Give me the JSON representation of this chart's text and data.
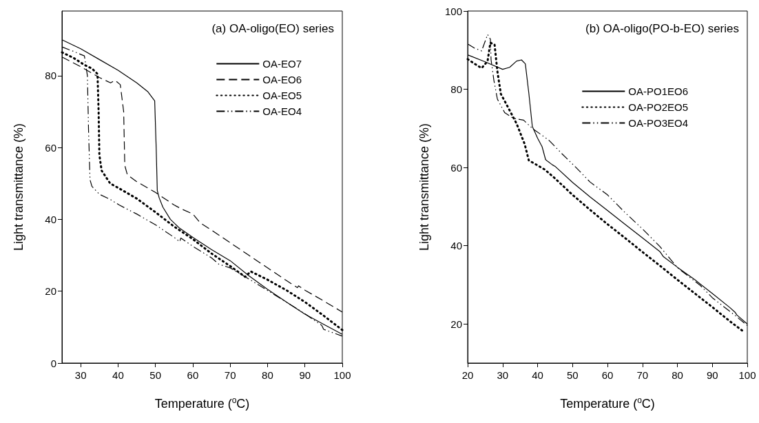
{
  "chart_data": [
    {
      "type": "line",
      "title": "(a) OA-oligo(EO) series",
      "xlabel": "Temperature ($^{o}$C)",
      "ylabel": "Light transmittance (%)",
      "xlim": [
        25,
        100
      ],
      "xticks": [
        30,
        40,
        50,
        60,
        70,
        80,
        90,
        100
      ],
      "ylim": [
        0,
        98
      ],
      "yticks": [
        0,
        20,
        40,
        60,
        80
      ],
      "grid": false,
      "legend": "top right",
      "marker": "none",
      "series": [
        {
          "name": "OA-EO7",
          "color": "#000000",
          "line_style": "solid",
          "x": [
            25,
            30,
            35,
            40,
            45,
            48,
            49.8,
            50.2,
            50.5,
            51,
            52,
            54,
            56.3,
            60,
            65,
            70,
            75,
            80,
            85,
            90,
            95,
            100
          ],
          "values": [
            90,
            87.5,
            84.5,
            81.5,
            78,
            75.5,
            73,
            60,
            48,
            46,
            43.4,
            40,
            37.7,
            35,
            31.6,
            28.5,
            24.3,
            20.5,
            17,
            13.6,
            10.8,
            8
          ]
        },
        {
          "name": "OA-EO6",
          "color": "#000000",
          "line_style": "dashed",
          "x": [
            25,
            30,
            35,
            38,
            39.2,
            40.6,
            41.5,
            41.8,
            42.5,
            45,
            50,
            55,
            57,
            60,
            62,
            65,
            70,
            75,
            80,
            85,
            88,
            88.3,
            90,
            95,
            100
          ],
          "values": [
            85.2,
            82.5,
            79.5,
            78,
            78.7,
            77.5,
            70,
            55,
            52.4,
            50.5,
            47.5,
            44,
            42.9,
            41.5,
            39,
            37,
            33.5,
            30,
            26.5,
            23,
            21,
            21.5,
            20.3,
            17.3,
            14.2
          ]
        },
        {
          "name": "OA-EO5",
          "color": "#000000",
          "line_style": "dotted",
          "x": [
            25,
            28,
            31,
            33,
            34.5,
            34.8,
            35,
            35.6,
            37.9,
            40,
            45,
            50,
            55,
            60,
            65,
            70,
            74,
            75.5,
            80,
            85,
            90,
            95,
            100
          ],
          "values": [
            86.5,
            85,
            83,
            82,
            80.5,
            70,
            58,
            53.6,
            50,
            48.8,
            45.8,
            42,
            38,
            34.5,
            30.5,
            27,
            24,
            25.5,
            23.2,
            20.3,
            17,
            13.2,
            9.2
          ]
        },
        {
          "name": "OA-EO4",
          "color": "#000000",
          "line_style": "dashdot",
          "x": [
            25,
            28,
            31,
            31.8,
            32.1,
            32.5,
            33,
            35,
            38,
            40.3,
            45,
            50,
            55,
            56.5,
            56.8,
            60,
            65,
            67,
            70,
            75,
            80,
            85,
            90,
            94.5,
            95,
            100
          ],
          "values": [
            88,
            86.8,
            85.5,
            80,
            65,
            51,
            49.2,
            47,
            45.5,
            44,
            41.5,
            38.5,
            35,
            33.8,
            34.8,
            32.5,
            29.3,
            27.5,
            26.5,
            23.4,
            20.2,
            17,
            13.7,
            10.5,
            9.4,
            7.5
          ]
        }
      ]
    },
    {
      "type": "line",
      "title": "(b) OA-oligo(PO-b-EO) series",
      "xlabel": "Temperature ($^{o}$C)",
      "ylabel": "Light transmittance (%)",
      "xlim": [
        20,
        100
      ],
      "xticks": [
        20,
        30,
        40,
        50,
        60,
        70,
        80,
        90,
        100
      ],
      "ylim": [
        10,
        100
      ],
      "yticks": [
        20,
        40,
        60,
        80,
        100
      ],
      "grid": false,
      "legend": "top right",
      "marker": "none",
      "series": [
        {
          "name": "OA-PO1EO6",
          "color": "#000000",
          "line_style": "solid",
          "x": [
            20,
            25,
            30,
            32,
            34,
            35.4,
            36.5,
            37.5,
            38.5,
            40,
            41.3,
            42.3,
            43,
            44.2,
            45,
            50,
            55,
            60,
            65,
            70,
            75,
            76,
            80,
            85,
            90,
            95,
            96.5,
            97,
            100
          ],
          "values": [
            88.8,
            87,
            85.1,
            85.6,
            87.2,
            87.5,
            86.5,
            79,
            70.5,
            67.5,
            65.3,
            62,
            61.5,
            60.7,
            60.3,
            56.2,
            52.5,
            49,
            45.5,
            42,
            38.5,
            37.2,
            34.5,
            31.3,
            27.8,
            24.2,
            23,
            22.3,
            20
          ]
        },
        {
          "name": "OA-PO2EO5",
          "color": "#000000",
          "line_style": "dotted",
          "x": [
            20,
            22,
            24,
            25.7,
            26.5,
            27.7,
            28.5,
            29.5,
            31.6,
            34,
            36.3,
            37.5,
            39.3,
            42,
            45,
            50,
            55,
            60,
            65,
            70,
            75,
            80,
            85,
            90,
            95,
            99
          ],
          "values": [
            87.7,
            86.5,
            85.4,
            87.2,
            91.9,
            91.4,
            84.6,
            78.8,
            75.3,
            71.2,
            66,
            61.8,
            60.9,
            59.5,
            57.2,
            53,
            49.2,
            45.5,
            42,
            38.4,
            34.9,
            31.3,
            27.8,
            24.3,
            20.7,
            18
          ]
        },
        {
          "name": "OA-PO3EO4",
          "color": "#000000",
          "line_style": "dashdot",
          "x": [
            20,
            22,
            24,
            25.7,
            26.5,
            26.7,
            27.5,
            28.5,
            30.6,
            33,
            36,
            38.5,
            43.2,
            47,
            51,
            55,
            60,
            65,
            70,
            75,
            80,
            86.6,
            90,
            96.6,
            100
          ],
          "values": [
            91.6,
            90.5,
            89.8,
            94,
            92.8,
            87.5,
            82.3,
            77.5,
            74,
            72.6,
            72.1,
            70,
            67,
            63.5,
            60,
            56.3,
            53,
            48.5,
            44.3,
            39.8,
            34.4,
            29.8,
            26.7,
            22.1,
            19.6
          ]
        }
      ]
    }
  ]
}
